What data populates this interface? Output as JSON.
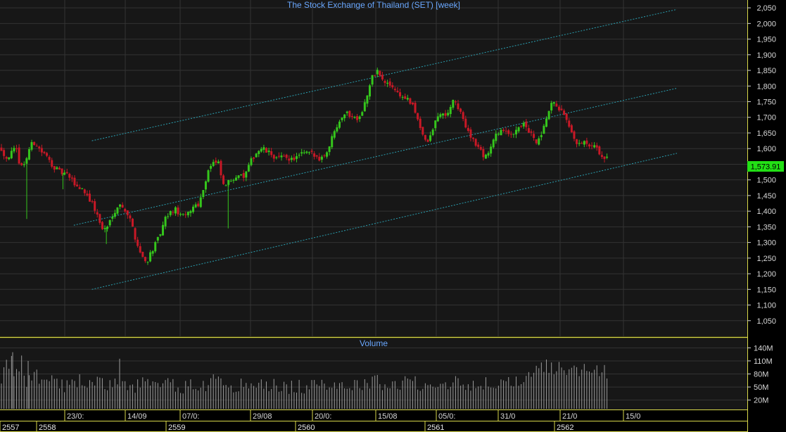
{
  "colors": {
    "background": "#000000",
    "panel": "#171717",
    "grid": "#333333",
    "frame": "#d8d84a",
    "title": "#6aa8ff",
    "up": "#35c61c",
    "down": "#c81826",
    "channel": "#2a9fb0",
    "volume": "#9a9a9a",
    "last_price_bg": "#22e015"
  },
  "price_panel": {
    "title": "The Stock Exchange of Thailand (SET) [week]",
    "last_price_label": "1,573.91"
  },
  "volume_panel": {
    "title": "Volume"
  },
  "chart_data": {
    "type": "candlestick",
    "title": "The Stock Exchange of Thailand (SET) [week]",
    "y_axis": {
      "ylim": [
        1000,
        2075
      ],
      "tick_labels": [
        "2,050",
        "2,000",
        "1,950",
        "1,900",
        "1,850",
        "1,800",
        "1,750",
        "1,700",
        "1,650",
        "1,600",
        "1,550",
        "1,500",
        "1,450",
        "1,400",
        "1,350",
        "1,300",
        "1,250",
        "1,200",
        "1,150",
        "1,100",
        "1,050"
      ],
      "side": "right",
      "grid": true
    },
    "volume_axis": {
      "ylim": [
        0,
        160
      ],
      "unit": "M",
      "tick_labels": [
        "140M",
        "110M",
        "80M",
        "50M",
        "20M"
      ]
    },
    "x_axis": {
      "date_labels": [
        "23/0:",
        "14/09",
        "07/0:",
        "29/08",
        "20/0:",
        "15/08",
        "05/0:",
        "31/0",
        "21/0",
        "15/0"
      ],
      "year_labels": [
        "2557",
        "2558",
        "2559",
        "2560",
        "2561",
        "2562"
      ]
    },
    "last_price": 1573.91,
    "close_path": [
      [
        0,
        1600
      ],
      [
        4,
        1570
      ],
      [
        8,
        1585
      ],
      [
        12,
        1600
      ],
      [
        16,
        1540
      ],
      [
        20,
        1560
      ],
      [
        24,
        1610
      ],
      [
        28,
        1620
      ],
      [
        32,
        1595
      ],
      [
        36,
        1580
      ],
      [
        40,
        1560
      ],
      [
        44,
        1540
      ],
      [
        48,
        1525
      ],
      [
        52,
        1520
      ],
      [
        56,
        1510
      ],
      [
        60,
        1490
      ],
      [
        64,
        1475
      ],
      [
        68,
        1470
      ],
      [
        72,
        1445
      ],
      [
        76,
        1420
      ],
      [
        80,
        1380
      ],
      [
        84,
        1340
      ],
      [
        88,
        1350
      ],
      [
        92,
        1390
      ],
      [
        96,
        1415
      ],
      [
        100,
        1420
      ],
      [
        104,
        1395
      ],
      [
        108,
        1360
      ],
      [
        112,
        1300
      ],
      [
        116,
        1260
      ],
      [
        120,
        1235
      ],
      [
        124,
        1270
      ],
      [
        128,
        1295
      ],
      [
        132,
        1330
      ],
      [
        136,
        1375
      ],
      [
        140,
        1395
      ],
      [
        144,
        1405
      ],
      [
        148,
        1390
      ],
      [
        152,
        1380
      ],
      [
        156,
        1400
      ],
      [
        160,
        1420
      ],
      [
        164,
        1425
      ],
      [
        168,
        1480
      ],
      [
        172,
        1540
      ],
      [
        176,
        1555
      ],
      [
        180,
        1550
      ],
      [
        184,
        1480
      ],
      [
        188,
        1490
      ],
      [
        192,
        1505
      ],
      [
        196,
        1520
      ],
      [
        200,
        1505
      ],
      [
        204,
        1530
      ],
      [
        208,
        1570
      ],
      [
        212,
        1590
      ],
      [
        216,
        1600
      ],
      [
        220,
        1590
      ],
      [
        224,
        1580
      ],
      [
        228,
        1570
      ],
      [
        232,
        1570
      ],
      [
        236,
        1575
      ],
      [
        240,
        1565
      ],
      [
        244,
        1570
      ],
      [
        248,
        1580
      ],
      [
        252,
        1585
      ],
      [
        256,
        1585
      ],
      [
        260,
        1575
      ],
      [
        264,
        1570
      ],
      [
        268,
        1580
      ],
      [
        272,
        1610
      ],
      [
        276,
        1660
      ],
      [
        280,
        1690
      ],
      [
        284,
        1715
      ],
      [
        288,
        1710
      ],
      [
        292,
        1700
      ],
      [
        296,
        1700
      ],
      [
        300,
        1730
      ],
      [
        304,
        1780
      ],
      [
        308,
        1835
      ],
      [
        312,
        1850
      ],
      [
        316,
        1815
      ],
      [
        320,
        1805
      ],
      [
        324,
        1800
      ],
      [
        328,
        1780
      ],
      [
        332,
        1765
      ],
      [
        336,
        1760
      ],
      [
        340,
        1740
      ],
      [
        344,
        1710
      ],
      [
        348,
        1660
      ],
      [
        352,
        1615
      ],
      [
        356,
        1640
      ],
      [
        360,
        1690
      ],
      [
        364,
        1715
      ],
      [
        368,
        1700
      ],
      [
        372,
        1735
      ],
      [
        376,
        1755
      ],
      [
        380,
        1715
      ],
      [
        384,
        1680
      ],
      [
        388,
        1650
      ],
      [
        392,
        1620
      ],
      [
        396,
        1600
      ],
      [
        400,
        1575
      ],
      [
        404,
        1590
      ],
      [
        408,
        1625
      ],
      [
        412,
        1655
      ],
      [
        416,
        1660
      ],
      [
        420,
        1640
      ],
      [
        424,
        1650
      ],
      [
        428,
        1670
      ],
      [
        432,
        1680
      ],
      [
        436,
        1660
      ],
      [
        440,
        1640
      ],
      [
        444,
        1615
      ],
      [
        448,
        1640
      ],
      [
        452,
        1700
      ],
      [
        456,
        1740
      ],
      [
        460,
        1740
      ],
      [
        464,
        1720
      ],
      [
        468,
        1690
      ],
      [
        472,
        1650
      ],
      [
        476,
        1620
      ],
      [
        480,
        1610
      ],
      [
        484,
        1620
      ],
      [
        488,
        1600
      ],
      [
        492,
        1605
      ],
      [
        496,
        1585
      ],
      [
        500,
        1565
      ],
      [
        502,
        1573.91
      ]
    ],
    "volume_path": [
      [
        0,
        75
      ],
      [
        4,
        95
      ],
      [
        8,
        110
      ],
      [
        12,
        70
      ],
      [
        16,
        115
      ],
      [
        20,
        60
      ],
      [
        24,
        75
      ],
      [
        28,
        90
      ],
      [
        32,
        65
      ],
      [
        36,
        70
      ],
      [
        40,
        80
      ],
      [
        44,
        60
      ],
      [
        48,
        60
      ],
      [
        52,
        55
      ],
      [
        56,
        50
      ],
      [
        60,
        55
      ],
      [
        64,
        65
      ],
      [
        68,
        60
      ],
      [
        72,
        55
      ],
      [
        76,
        60
      ],
      [
        80,
        60
      ],
      [
        84,
        55
      ],
      [
        88,
        58
      ],
      [
        92,
        60
      ],
      [
        96,
        55
      ],
      [
        100,
        50
      ],
      [
        104,
        52
      ],
      [
        108,
        50
      ],
      [
        112,
        55
      ],
      [
        116,
        60
      ],
      [
        120,
        60
      ],
      [
        124,
        55
      ],
      [
        128,
        52
      ],
      [
        132,
        50
      ],
      [
        136,
        55
      ],
      [
        140,
        55
      ],
      [
        144,
        55
      ],
      [
        148,
        52
      ],
      [
        152,
        50
      ],
      [
        156,
        55
      ],
      [
        160,
        55
      ],
      [
        164,
        52
      ],
      [
        168,
        55
      ],
      [
        172,
        60
      ],
      [
        176,
        65
      ],
      [
        180,
        62
      ],
      [
        184,
        60
      ],
      [
        188,
        58
      ],
      [
        192,
        55
      ],
      [
        196,
        55
      ],
      [
        200,
        52
      ],
      [
        204,
        52
      ],
      [
        208,
        55
      ],
      [
        212,
        55
      ],
      [
        216,
        55
      ],
      [
        220,
        55
      ],
      [
        224,
        55
      ],
      [
        228,
        52
      ],
      [
        232,
        50
      ],
      [
        236,
        50
      ],
      [
        240,
        52
      ],
      [
        244,
        52
      ],
      [
        248,
        50
      ],
      [
        252,
        50
      ],
      [
        256,
        50
      ],
      [
        260,
        50
      ],
      [
        264,
        52
      ],
      [
        268,
        55
      ],
      [
        272,
        60
      ],
      [
        276,
        62
      ],
      [
        280,
        60
      ],
      [
        284,
        58
      ],
      [
        288,
        55
      ],
      [
        292,
        55
      ],
      [
        296,
        55
      ],
      [
        300,
        55
      ],
      [
        304,
        60
      ],
      [
        308,
        62
      ],
      [
        312,
        62
      ],
      [
        316,
        60
      ],
      [
        320,
        58
      ],
      [
        324,
        58
      ],
      [
        328,
        55
      ],
      [
        332,
        58
      ],
      [
        336,
        62
      ],
      [
        340,
        62
      ],
      [
        344,
        60
      ],
      [
        348,
        58
      ],
      [
        352,
        58
      ],
      [
        356,
        58
      ],
      [
        360,
        60
      ],
      [
        364,
        60
      ],
      [
        368,
        58
      ],
      [
        372,
        62
      ],
      [
        376,
        62
      ],
      [
        380,
        60
      ],
      [
        384,
        60
      ],
      [
        388,
        58
      ],
      [
        392,
        58
      ],
      [
        396,
        55
      ],
      [
        400,
        55
      ],
      [
        404,
        58
      ],
      [
        408,
        60
      ],
      [
        412,
        60
      ],
      [
        416,
        60
      ],
      [
        420,
        58
      ],
      [
        424,
        55
      ],
      [
        428,
        58
      ],
      [
        432,
        60
      ],
      [
        436,
        65
      ],
      [
        440,
        75
      ],
      [
        444,
        85
      ],
      [
        448,
        95
      ],
      [
        452,
        100
      ],
      [
        456,
        95
      ],
      [
        460,
        95
      ],
      [
        464,
        95
      ],
      [
        468,
        95
      ],
      [
        472,
        90
      ],
      [
        476,
        85
      ],
      [
        480,
        88
      ],
      [
        484,
        85
      ],
      [
        488,
        85
      ],
      [
        492,
        90
      ],
      [
        496,
        90
      ],
      [
        500,
        85
      ],
      [
        502,
        75
      ]
    ],
    "spikes": [
      [
        21,
        1375
      ],
      [
        51,
        1470
      ],
      [
        87,
        1295
      ],
      [
        188,
        1345
      ]
    ],
    "channels": [
      {
        "x0": 75,
        "y0": 1150,
        "x1": 560,
        "y1": 1585
      },
      {
        "x0": 60,
        "y0": 1355,
        "x1": 560,
        "y1": 1793
      },
      {
        "x0": 75,
        "y0": 1625,
        "x1": 560,
        "y1": 2045
      }
    ],
    "x_span": [
      0,
      560
    ]
  }
}
